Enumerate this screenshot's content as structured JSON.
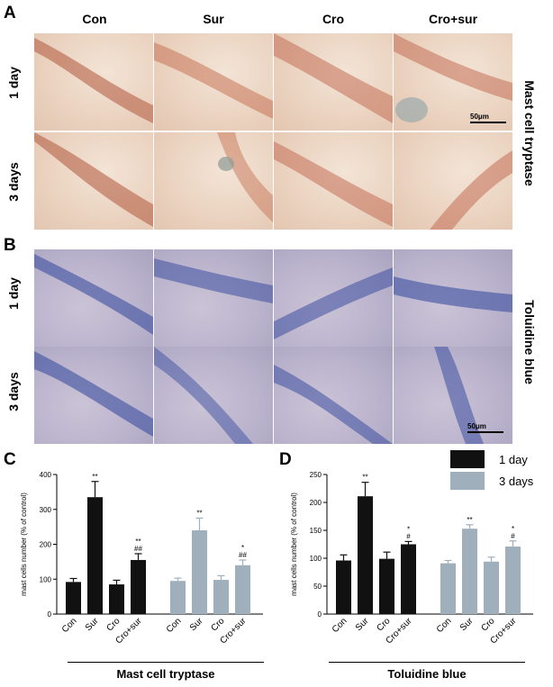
{
  "panels": {
    "A": {
      "letter": "A",
      "side_label": "Mast cell tryptase",
      "rows": [
        "1 day",
        "3 days"
      ],
      "scale": "50μm"
    },
    "B": {
      "letter": "B",
      "side_label": "Toluidine blue",
      "rows": [
        "1 day",
        "3 days"
      ],
      "scale": "50μm"
    },
    "C": {
      "letter": "C"
    },
    "D": {
      "letter": "D"
    }
  },
  "columns": [
    "Con",
    "Sur",
    "Cro",
    "Cro+sur"
  ],
  "legend": [
    {
      "label": "1 day",
      "color": "#111111"
    },
    {
      "label": "3 days",
      "color": "#9fb0bc"
    }
  ],
  "chart_data": [
    {
      "type": "bar",
      "ylabel": "mast cells number (% of control)",
      "group_label": "Mast cell tryptase",
      "ylim": [
        0,
        400
      ],
      "yticks": [
        "0",
        "100",
        "200",
        "300",
        "400"
      ],
      "categories": [
        "Con",
        "Sur",
        "Cro",
        "Cro+sur"
      ],
      "series": [
        {
          "name": "1 day",
          "values": [
            92,
            335,
            85,
            155
          ],
          "errors": [
            10,
            45,
            12,
            18
          ],
          "annotations": [
            "",
            "**",
            "",
            "**\n##"
          ]
        },
        {
          "name": "3 days",
          "values": [
            95,
            240,
            98,
            140
          ],
          "errors": [
            8,
            35,
            12,
            15
          ],
          "annotations": [
            "",
            "**",
            "",
            "*\n##"
          ]
        }
      ]
    },
    {
      "type": "bar",
      "ylabel": "mast cells number (% of control)",
      "group_label": "Toluidine blue",
      "ylim": [
        0,
        250
      ],
      "yticks": [
        "0",
        "50",
        "100",
        "150",
        "200",
        "250"
      ],
      "categories": [
        "Con",
        "Sur",
        "Cro",
        "Cro+sur"
      ],
      "series": [
        {
          "name": "1 day",
          "values": [
            96,
            211,
            99,
            125
          ],
          "errors": [
            10,
            25,
            12,
            5
          ],
          "annotations": [
            "",
            "**",
            "",
            "*\n#"
          ]
        },
        {
          "name": "3 days",
          "values": [
            91,
            153,
            94,
            121
          ],
          "errors": [
            5,
            7,
            8,
            10
          ],
          "annotations": [
            "",
            "**",
            "",
            "*\n#"
          ]
        }
      ]
    }
  ]
}
